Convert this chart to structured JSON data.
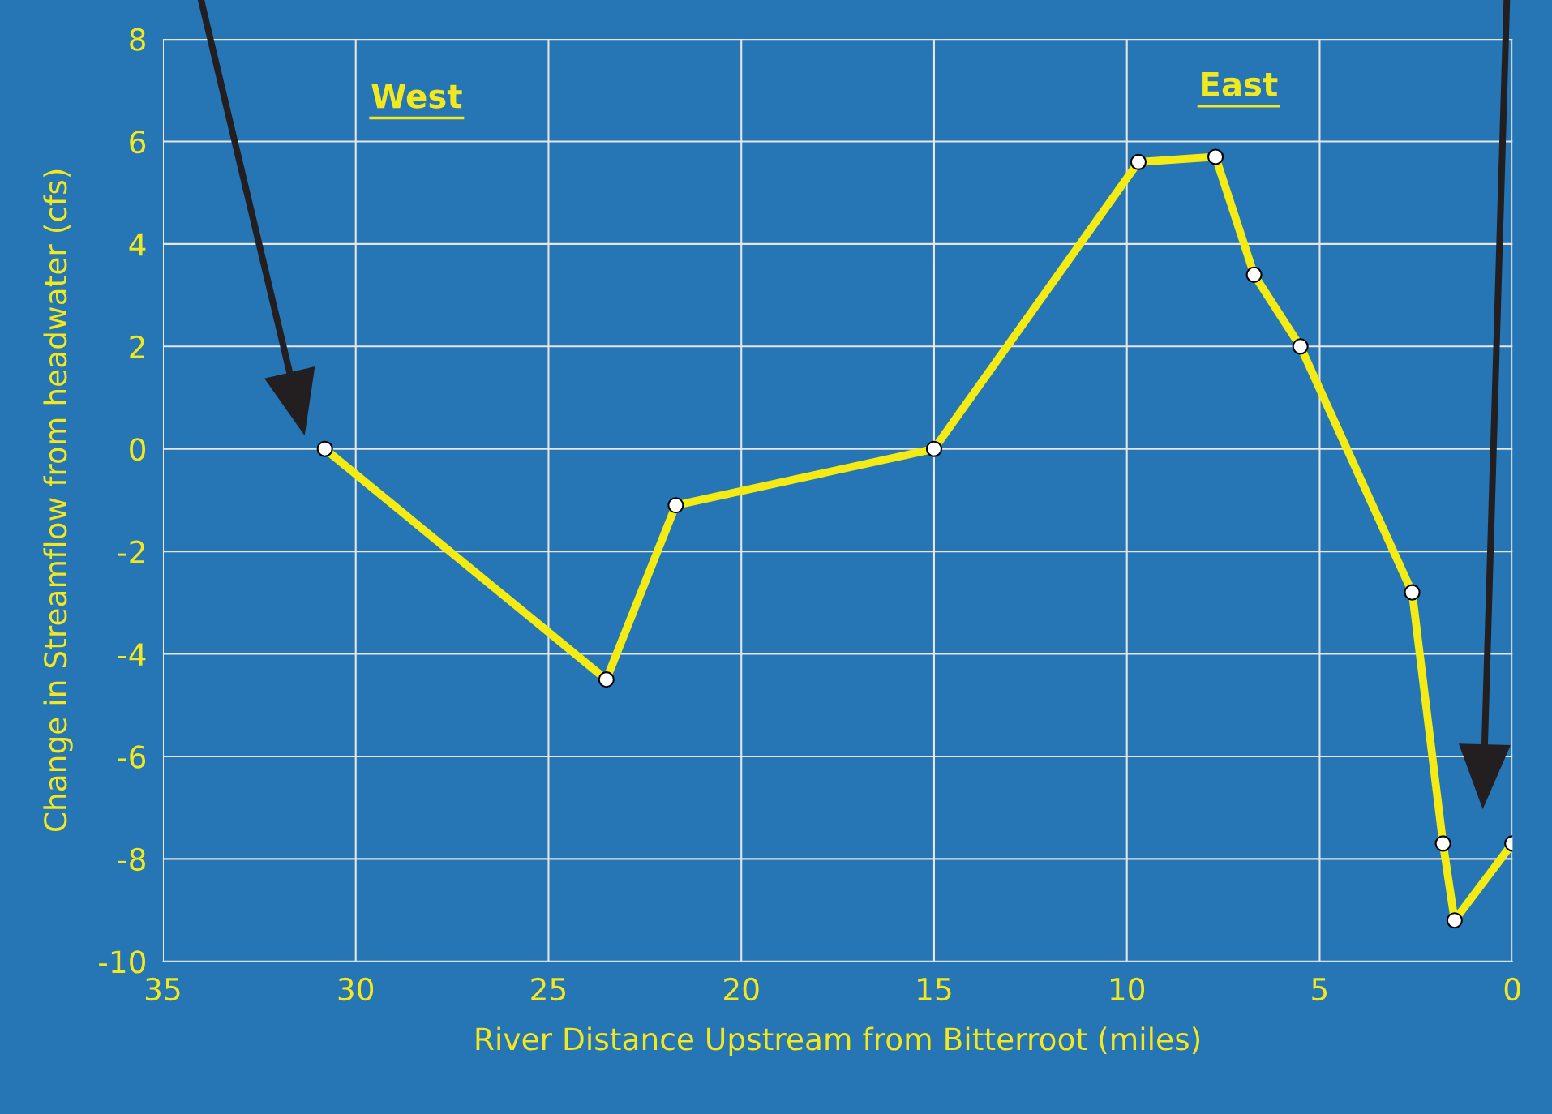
{
  "chart_data": {
    "type": "line",
    "xlabel": "River Distance Upstream from Bitterroot (miles)",
    "ylabel": "Change in Streamflow from headwater (cfs)",
    "annotations": [
      "West",
      "East"
    ],
    "x": [
      30.8,
      23.5,
      21.7,
      15.0,
      9.7,
      7.7,
      6.7,
      5.5,
      2.6,
      1.8,
      1.5,
      0.0
    ],
    "series": [
      {
        "color": "#f5eb14",
        "values": [
          0.0,
          -4.5,
          -1.1,
          0.0,
          5.6,
          5.7,
          3.4,
          2.0,
          -2.8,
          -7.7,
          -9.2,
          -7.7
        ]
      }
    ],
    "xlim": [
      35,
      0
    ],
    "xticks": [
      35,
      30,
      25,
      20,
      15,
      10,
      5,
      0
    ],
    "ylim": [
      -10,
      8
    ],
    "yticks": [
      -10,
      -8,
      -6,
      -4,
      -2,
      0,
      2,
      4,
      6,
      8
    ],
    "grid": true,
    "marker": "circle",
    "line_style": "solid"
  }
}
